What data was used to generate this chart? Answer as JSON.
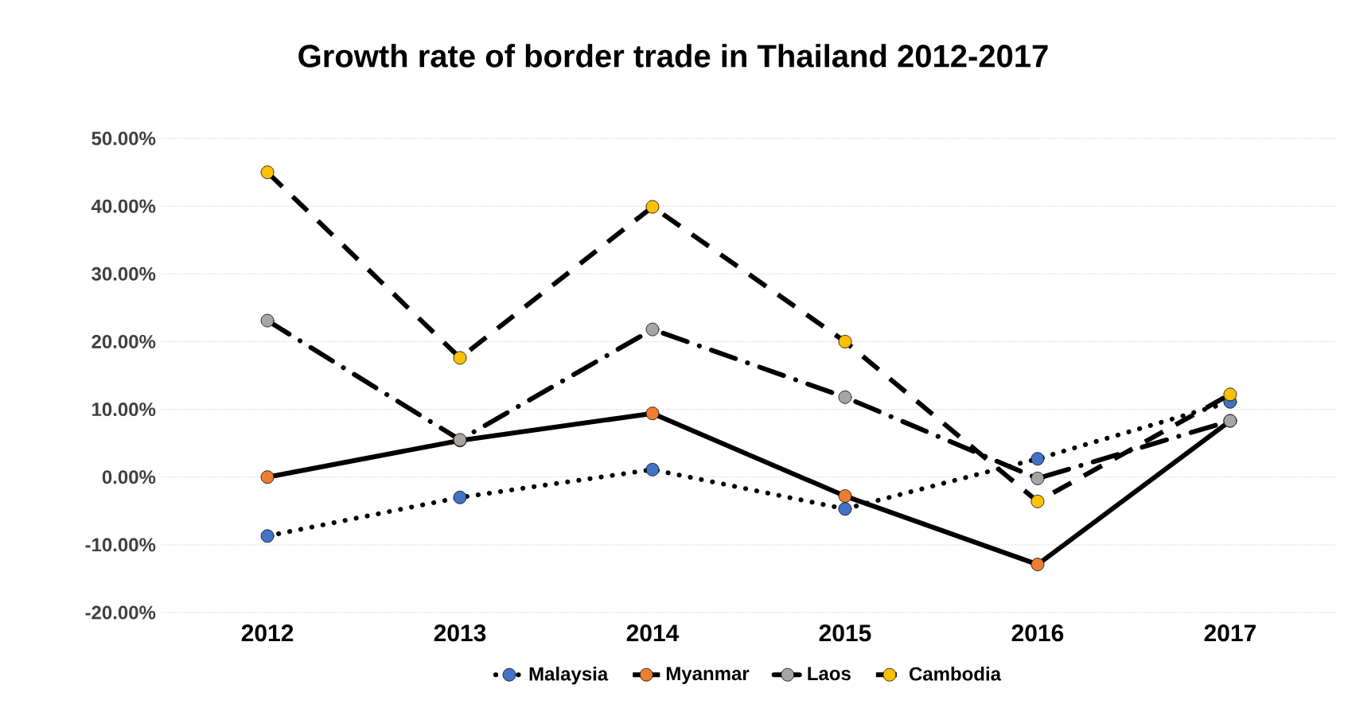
{
  "chart_data": {
    "type": "line",
    "title": "Growth rate of border trade in Thailand 2012-2017",
    "categories": [
      "2012",
      "2013",
      "2014",
      "2015",
      "2016",
      "2017"
    ],
    "series": [
      {
        "name": "Malaysia",
        "color": "#4472c4",
        "line_style": "dotted",
        "values": [
          -8.7,
          -3.0,
          1.1,
          -4.7,
          2.7,
          11.1
        ]
      },
      {
        "name": "Myanmar",
        "color": "#ed7d31",
        "line_style": "solid",
        "values": [
          0,
          5.4,
          9.4,
          -2.8,
          -12.9,
          8.3
        ]
      },
      {
        "name": "Laos",
        "color": "#a5a5a5",
        "line_style": "dashdot",
        "values": [
          23.1,
          5.5,
          21.8,
          11.8,
          -0.2,
          8.3
        ]
      },
      {
        "name": "Cambodia",
        "color": "#ffc000",
        "line_style": "dashed",
        "values": [
          45.0,
          17.6,
          39.9,
          20.0,
          -3.6,
          12.2
        ]
      }
    ],
    "ylim": [
      -20,
      50
    ],
    "yticks": [
      {
        "value": -20,
        "label": "-20.00%"
      },
      {
        "value": -10,
        "label": "-10.00%"
      },
      {
        "value": 0,
        "label": "0.00%"
      },
      {
        "value": 10,
        "label": "10.00%"
      },
      {
        "value": 20,
        "label": "20.00%"
      },
      {
        "value": 30,
        "label": "30.00%"
      },
      {
        "value": 40,
        "label": "40.00%"
      },
      {
        "value": 50,
        "label": "50.00%"
      }
    ],
    "grid": "y",
    "legend": "bottom",
    "marker": "circle"
  }
}
